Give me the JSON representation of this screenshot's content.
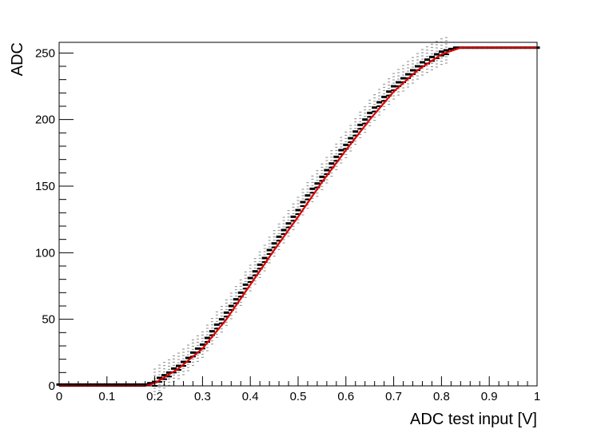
{
  "chart_data": {
    "type": "scatter",
    "title": "",
    "xlabel": "ADC test input [V]",
    "ylabel": "ADC",
    "xlim": [
      0,
      1
    ],
    "ylim": [
      0,
      258
    ],
    "x_ticks": [
      "0",
      "0.1",
      "0.2",
      "0.3",
      "0.4",
      "0.5",
      "0.6",
      "0.7",
      "0.8",
      "0.9",
      "1"
    ],
    "x_tick_values": [
      0,
      0.1,
      0.2,
      0.3,
      0.4,
      0.5,
      0.6,
      0.7,
      0.8,
      0.9,
      1.0
    ],
    "y_ticks": [
      "0",
      "50",
      "100",
      "150",
      "200",
      "250"
    ],
    "y_tick_values": [
      0,
      50,
      100,
      150,
      200,
      250
    ],
    "grid": false,
    "legend": "none",
    "colors": {
      "fit_line": "#dd0000",
      "markers": "#000000",
      "frame": "#000000"
    },
    "series": [
      {
        "kind": "measurements",
        "x": [
          0.0,
          0.01,
          0.02,
          0.03,
          0.04,
          0.05,
          0.06,
          0.07,
          0.08,
          0.09,
          0.1,
          0.11,
          0.12,
          0.13,
          0.14,
          0.15,
          0.16,
          0.17,
          0.18,
          0.19,
          0.2,
          0.21,
          0.22,
          0.23,
          0.24,
          0.25,
          0.26,
          0.27,
          0.28,
          0.29,
          0.3,
          0.31,
          0.32,
          0.33,
          0.34,
          0.35,
          0.36,
          0.37,
          0.38,
          0.39,
          0.4,
          0.41,
          0.42,
          0.43,
          0.44,
          0.45,
          0.46,
          0.47,
          0.48,
          0.49,
          0.5,
          0.51,
          0.52,
          0.53,
          0.54,
          0.55,
          0.56,
          0.57,
          0.58,
          0.59,
          0.6,
          0.61,
          0.62,
          0.63,
          0.64,
          0.65,
          0.66,
          0.67,
          0.68,
          0.69,
          0.7,
          0.71,
          0.72,
          0.73,
          0.74,
          0.75,
          0.76,
          0.77,
          0.78,
          0.79,
          0.8,
          0.81,
          0.82,
          0.83,
          0.84,
          0.85,
          0.86,
          0.87,
          0.88,
          0.89,
          0.9,
          0.91,
          0.92,
          0.93,
          0.94,
          0.95,
          0.96,
          0.97,
          0.98,
          0.99,
          1.0
        ],
        "y": [
          1,
          1,
          1,
          1,
          1,
          1,
          1,
          1,
          1,
          1,
          1,
          1,
          1,
          1,
          1,
          1,
          1,
          1,
          1,
          2,
          3,
          6,
          8,
          10,
          13,
          15,
          18,
          21,
          25,
          28,
          31,
          36,
          41,
          46,
          50,
          55,
          60,
          65,
          70,
          76,
          81,
          86,
          91,
          96,
          102,
          107,
          112,
          117,
          122,
          127,
          132,
          138,
          143,
          148,
          152,
          157,
          162,
          167,
          172,
          177,
          181,
          186,
          191,
          196,
          200,
          205,
          209,
          213,
          217,
          221,
          225,
          228,
          231,
          234,
          237,
          240,
          243,
          245,
          247,
          249,
          251,
          252,
          253,
          254,
          254,
          254,
          254,
          254,
          254,
          254,
          254,
          254,
          254,
          254,
          254,
          254,
          254,
          254,
          254,
          254,
          254
        ]
      },
      {
        "kind": "fit",
        "x": [
          0.0,
          0.05,
          0.1,
          0.15,
          0.18,
          0.2,
          0.25,
          0.3,
          0.35,
          0.4,
          0.45,
          0.5,
          0.55,
          0.6,
          0.65,
          0.7,
          0.75,
          0.8,
          0.84,
          0.9,
          1.0
        ],
        "y": [
          0,
          0,
          0,
          0,
          0,
          2,
          13,
          28,
          50,
          76,
          102,
          127,
          153,
          177,
          200,
          221,
          237,
          249,
          254,
          254,
          254
        ]
      }
    ]
  }
}
